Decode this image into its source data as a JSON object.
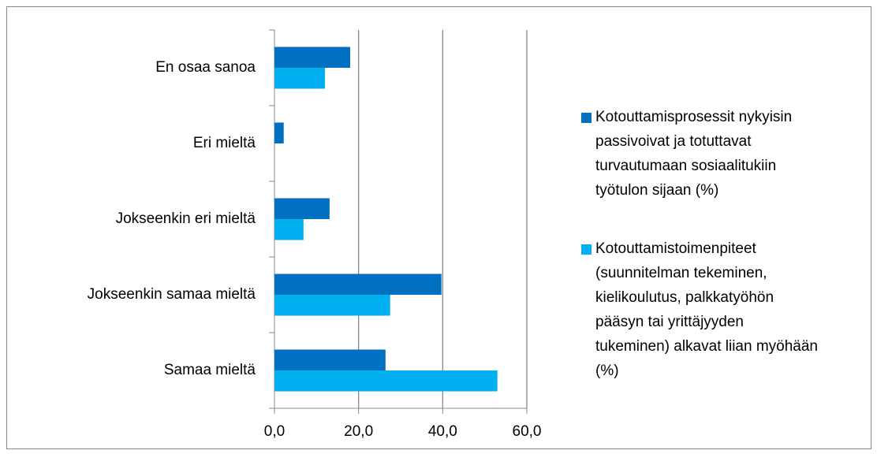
{
  "chart_data": {
    "type": "barh",
    "categories": [
      "En osaa sanoa",
      "Eri mieltä",
      "Jokseenkin eri mieltä",
      "Jokseenkin samaa mieltä",
      "Samaa mieltä"
    ],
    "series": [
      {
        "name": "Kotouttamisprosessit nykyisin passivoivat ja totuttavat turvautumaan sosiaalitukiin työtulon sijaan (%)",
        "color": "#0070c0",
        "values": [
          18.0,
          2.2,
          13.1,
          39.7,
          26.4
        ]
      },
      {
        "name": "Kotouttamistoimenpiteet (suunnitelman tekeminen, kielikoulutus, palkkatyöhön pääsyn tai yrittäjyyden tukeminen) alkavat liian myöhään (%)",
        "color": "#00b0f0",
        "values": [
          12.0,
          0,
          6.9,
          27.5,
          53.0
        ]
      }
    ],
    "xlim": [
      0,
      60
    ],
    "xticks": [
      {
        "value": 0,
        "label": "0,0"
      },
      {
        "value": 20,
        "label": "20,0"
      },
      {
        "value": 40,
        "label": "40,0"
      },
      {
        "value": 60,
        "label": "60,0"
      }
    ],
    "grid": true,
    "legend": "right"
  }
}
